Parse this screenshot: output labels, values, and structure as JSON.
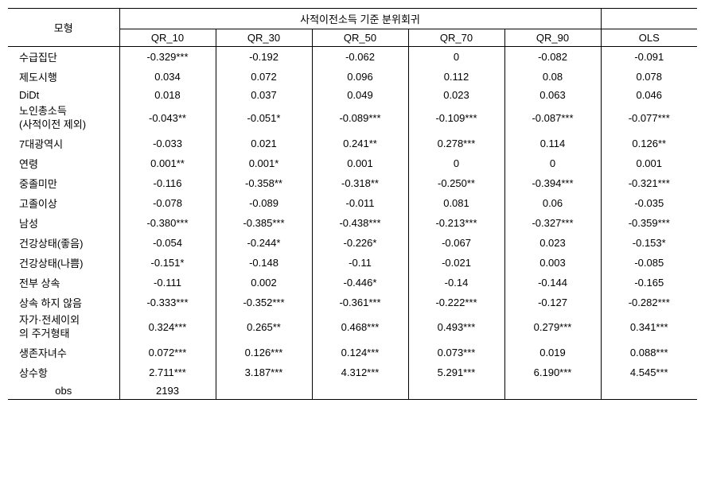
{
  "header": {
    "model_label": "모형",
    "group_label": "사적이전소득 기준 분위회귀",
    "columns": [
      "QR_10",
      "QR_30",
      "QR_50",
      "QR_70",
      "QR_90",
      "OLS"
    ]
  },
  "rows": [
    {
      "label": "수급집단",
      "values": [
        "-0.329***",
        "-0.192",
        "-0.062",
        "0",
        "-0.082",
        "-0.091"
      ]
    },
    {
      "label": "제도시행",
      "values": [
        "0.034",
        "0.072",
        "0.096",
        "0.112",
        "0.08",
        "0.078"
      ]
    },
    {
      "label": "DiDt",
      "values": [
        "0.018",
        "0.037",
        "0.049",
        "0.023",
        "0.063",
        "0.046"
      ]
    },
    {
      "label": "노인총소득\n(사적이전 제외)",
      "values": [
        "-0.043**",
        "-0.051*",
        "-0.089***",
        "-0.109***",
        "-0.087***",
        "-0.077***"
      ],
      "multiline": true
    },
    {
      "label": "7대광역시",
      "values": [
        "-0.033",
        "0.021",
        "0.241**",
        "0.278***",
        "0.114",
        "0.126**"
      ]
    },
    {
      "label": "연령",
      "values": [
        "0.001**",
        "0.001*",
        "0.001",
        "0",
        "0",
        "0.001"
      ]
    },
    {
      "label": "중졸미만",
      "values": [
        "-0.116",
        "-0.358**",
        "-0.318**",
        "-0.250**",
        "-0.394***",
        "-0.321***"
      ]
    },
    {
      "label": "고졸이상",
      "values": [
        "-0.078",
        "-0.089",
        "-0.011",
        "0.081",
        "0.06",
        "-0.035"
      ]
    },
    {
      "label": "남성",
      "values": [
        "-0.380***",
        "-0.385***",
        "-0.438***",
        "-0.213***",
        "-0.327***",
        "-0.359***"
      ]
    },
    {
      "label": "건강상태(좋음)",
      "values": [
        "-0.054",
        "-0.244*",
        "-0.226*",
        "-0.067",
        "0.023",
        "-0.153*"
      ]
    },
    {
      "label": "건강상태(나쁨)",
      "values": [
        "-0.151*",
        "-0.148",
        "-0.11",
        "-0.021",
        "0.003",
        "-0.085"
      ]
    },
    {
      "label": "전부 상속",
      "values": [
        "-0.111",
        "0.002",
        "-0.446*",
        "-0.14",
        "-0.144",
        "-0.165"
      ]
    },
    {
      "label": "상속 하지 않음",
      "values": [
        "-0.333***",
        "-0.352***",
        "-0.361***",
        "-0.222***",
        "-0.127",
        "-0.282***"
      ]
    },
    {
      "label": "자가·전세이외\n의 주거형태",
      "values": [
        "0.324***",
        "0.265**",
        "0.468***",
        "0.493***",
        "0.279***",
        "0.341***"
      ],
      "multiline": true
    },
    {
      "label": "생존자녀수",
      "values": [
        "0.072***",
        "0.126***",
        "0.124***",
        "0.073***",
        "0.019",
        "0.088***"
      ]
    },
    {
      "label": "상수항",
      "values": [
        "2.711***",
        "3.187***",
        "4.312***",
        "5.291***",
        "6.190***",
        "4.545***"
      ]
    }
  ],
  "obs": {
    "label": "obs",
    "value": "2193"
  },
  "style": {
    "col_widths": {
      "label": 140,
      "data": 121
    }
  }
}
